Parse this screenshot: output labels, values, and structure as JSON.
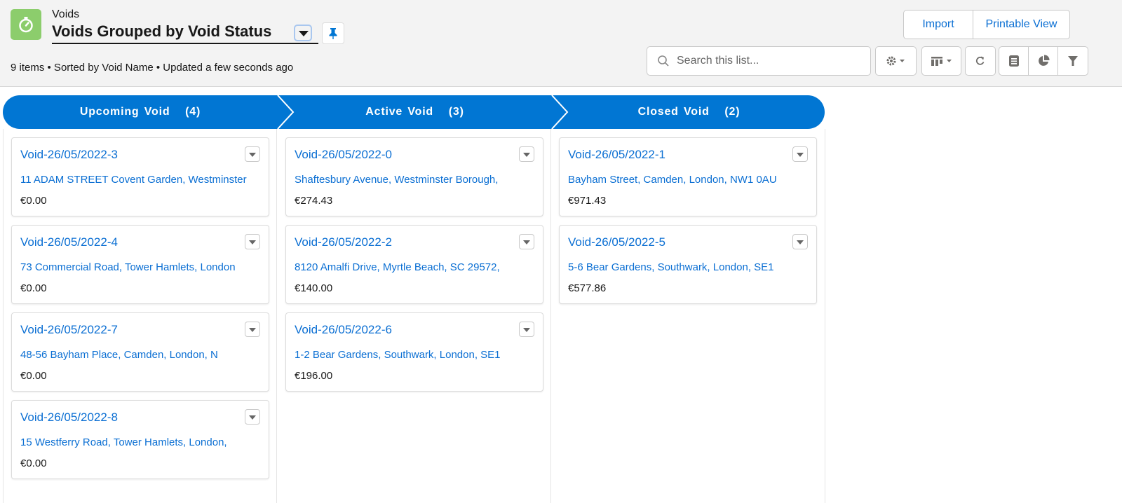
{
  "header": {
    "object_label": "Voids",
    "title": "Voids Grouped by Void Status",
    "meta": "9 items • Sorted by Void Name • Updated a few seconds ago",
    "icons": {
      "app": "stopwatch-icon",
      "pin": "pin-icon"
    }
  },
  "actions": {
    "import": "Import",
    "printable_view": "Printable View"
  },
  "search": {
    "placeholder": "Search this list...",
    "value": ""
  },
  "toolbar_icons": [
    "gear-icon",
    "kanban-icon",
    "refresh-icon",
    "list-icon",
    "chart-icon",
    "filter-icon"
  ],
  "colors": {
    "accent": "#0176d3",
    "link": "#0b6fd3",
    "app_icon": "#8ccd6c"
  },
  "columns": [
    {
      "label": "Upcoming Void",
      "count": "(4)",
      "cards": [
        {
          "name": "Void-26/05/2022-3",
          "address": "11 ADAM STREET Covent Garden, Westminster",
          "amount": "€0.00"
        },
        {
          "name": "Void-26/05/2022-4",
          "address": "73 Commercial Road, Tower Hamlets, London",
          "amount": "€0.00"
        },
        {
          "name": "Void-26/05/2022-7",
          "address": "48-56 Bayham Place, Camden, London, N",
          "amount": "€0.00"
        },
        {
          "name": "Void-26/05/2022-8",
          "address": "15 Westferry Road, Tower Hamlets, London,",
          "amount": "€0.00"
        }
      ]
    },
    {
      "label": "Active Void",
      "count": "(3)",
      "cards": [
        {
          "name": "Void-26/05/2022-0",
          "address": "Shaftesbury Avenue, Westminster Borough,",
          "amount": "€274.43"
        },
        {
          "name": "Void-26/05/2022-2",
          "address": "8120 Amalfi Drive, Myrtle Beach, SC 29572,",
          "amount": "€140.00"
        },
        {
          "name": "Void-26/05/2022-6",
          "address": "1-2 Bear Gardens, Southwark, London, SE1 ",
          "amount": "€196.00"
        }
      ]
    },
    {
      "label": "Closed Void",
      "count": "(2)",
      "cards": [
        {
          "name": "Void-26/05/2022-1",
          "address": "Bayham Street, Camden, London, NW1 0AU",
          "amount": "€971.43"
        },
        {
          "name": "Void-26/05/2022-5",
          "address": "5-6 Bear Gardens, Southwark, London, SE1",
          "amount": "€577.86"
        }
      ]
    }
  ]
}
